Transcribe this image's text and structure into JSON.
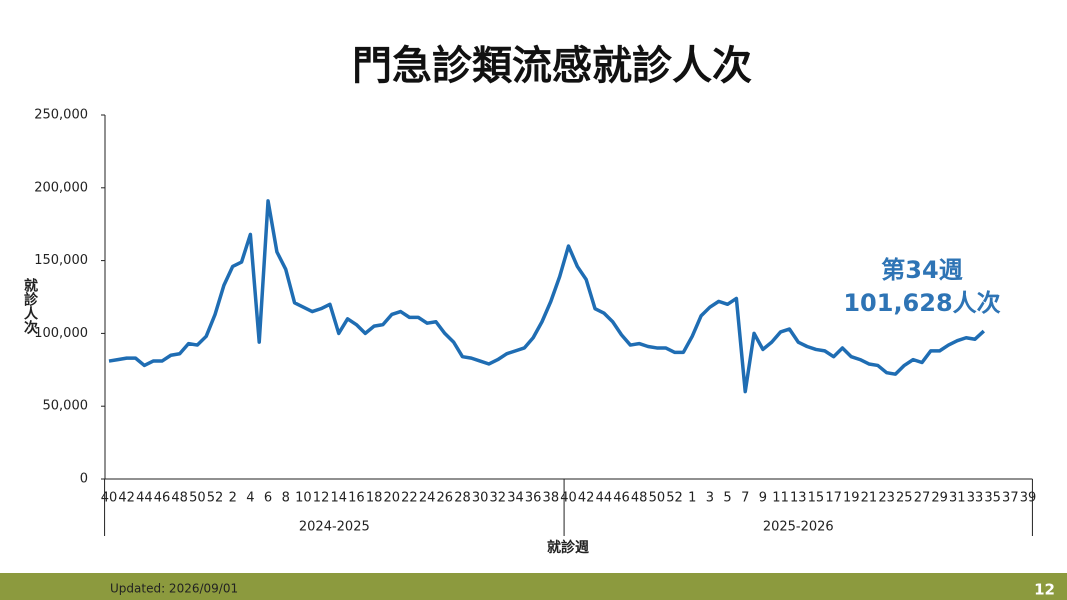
{
  "chart_data": {
    "type": "line",
    "title": "門急診類流感就診人次",
    "y_label": "就診人次",
    "x_label": "就診週",
    "groups": [
      "2024-2025",
      "2025-2026"
    ],
    "categories": [
      "40",
      null,
      "42",
      null,
      "44",
      null,
      "46",
      null,
      "48",
      null,
      "50",
      null,
      "52",
      null,
      "2",
      null,
      "4",
      null,
      "6",
      null,
      "8",
      null,
      "10",
      null,
      "12",
      null,
      "14",
      null,
      "16",
      null,
      "18",
      null,
      "20",
      null,
      "22",
      null,
      "24",
      null,
      "26",
      null,
      "28",
      null,
      "30",
      null,
      "32",
      null,
      "34",
      null,
      "36",
      null,
      "38",
      null,
      "40",
      null,
      "42",
      null,
      "44",
      null,
      "46",
      null,
      "48",
      null,
      "50",
      null,
      "52",
      null,
      "1",
      null,
      "3",
      null,
      "5",
      null,
      "7",
      null,
      "9",
      null,
      "11",
      null,
      "13",
      null,
      "15",
      null,
      "17",
      null,
      "19",
      null,
      "21",
      null,
      "23",
      null,
      "25",
      null,
      "27",
      null,
      "29",
      null,
      "31",
      null,
      "33",
      null,
      "35",
      null,
      "37",
      null,
      "39"
    ],
    "series": [
      {
        "name": "就診人次",
        "color": "#1f6db3",
        "values": [
          81000,
          82000,
          83000,
          83000,
          78000,
          81000,
          81000,
          85000,
          86000,
          93000,
          92000,
          98000,
          113000,
          133000,
          146000,
          149000,
          168000,
          94000,
          191000,
          156000,
          144000,
          121000,
          118000,
          115000,
          117000,
          120000,
          100000,
          110000,
          106000,
          100000,
          105000,
          106000,
          113000,
          115000,
          111000,
          111000,
          107000,
          108000,
          100000,
          94000,
          84000,
          83000,
          81000,
          79000,
          82000,
          86000,
          88000,
          90000,
          97000,
          108000,
          122000,
          139000,
          160000,
          146000,
          137000,
          117000,
          114000,
          108000,
          99000,
          92000,
          93000,
          91000,
          90000,
          90000,
          87000,
          87000,
          98000,
          112000,
          118000,
          122000,
          120000,
          124000,
          60000,
          100000,
          89000,
          94000,
          101000,
          103000,
          94000,
          91000,
          89000,
          88000,
          84000,
          90000,
          84000,
          82000,
          79000,
          78000,
          73000,
          72000,
          78000,
          82000,
          80000,
          88000,
          88000,
          92000,
          95000,
          97000,
          96000,
          101628,
          null,
          null,
          null,
          null,
          null
        ]
      }
    ],
    "annotation": {
      "week": "第34週",
      "value": "101,628人次"
    },
    "ylim": [
      0,
      250000
    ],
    "yticks": [
      0,
      {
        "value": 50000,
        "label": "50,000"
      },
      {
        "value": 100000,
        "label": "100,000"
      },
      {
        "value": 150000,
        "label": "150,000"
      },
      {
        "value": 200000,
        "label": "200,000"
      },
      {
        "value": 250000,
        "label": "250,000"
      }
    ],
    "grid": false
  },
  "footer": {
    "updated": "Updated: 2026/09/01",
    "page": "12"
  }
}
